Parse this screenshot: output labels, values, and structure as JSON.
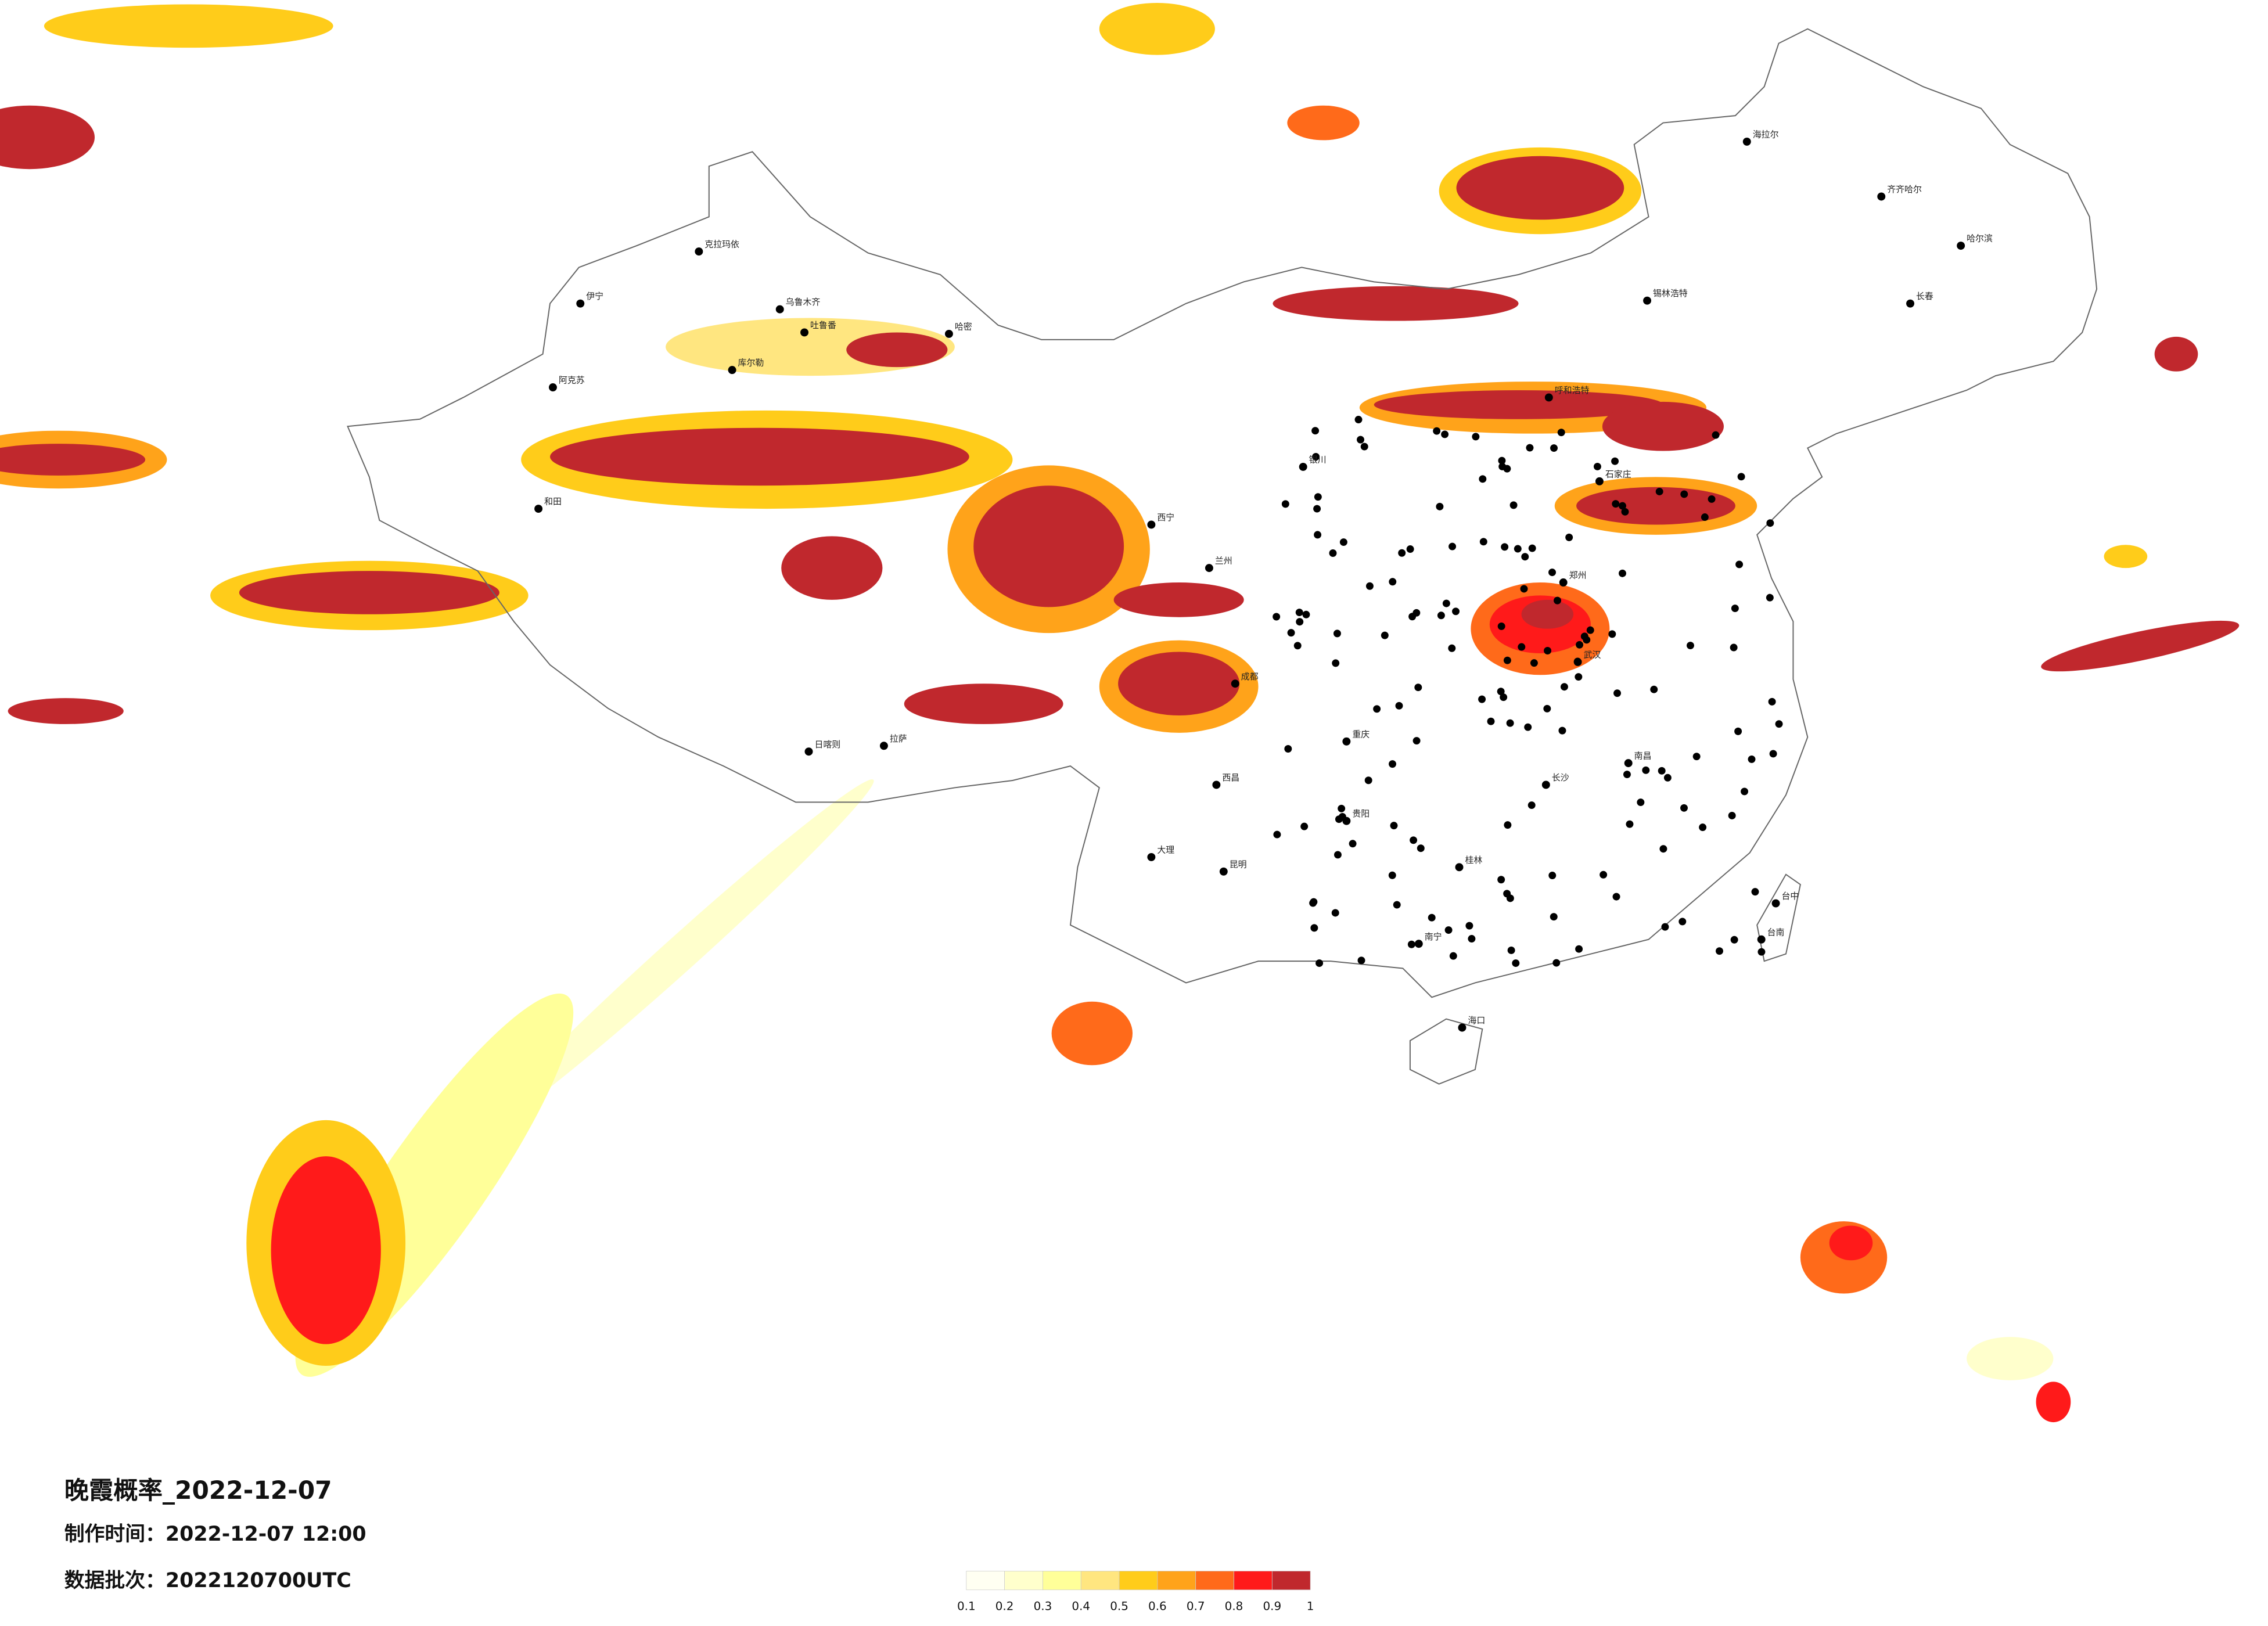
{
  "map": {
    "title": "晚霞概率_2022-12-07",
    "produced": "制作时间：2022-12-07 12:00",
    "batch": "数据批次：2022120700UTC",
    "legend": {
      "colors": [
        "#fffff2",
        "#ffffcc",
        "#ffff99",
        "#ffe680",
        "#ffcc1a",
        "#ffa31a",
        "#ff6a1a",
        "#ff1a1a",
        "#c0282d"
      ],
      "ticks": [
        0.1,
        0.2,
        0.3,
        0.4,
        0.5,
        0.6,
        0.7,
        0.8,
        0.9,
        1
      ]
    },
    "cities": [
      "克拉玛依",
      "伊宁",
      "乌鲁木齐",
      "吐鲁番",
      "哈密",
      "库尔勒",
      "阿克苏",
      "和田",
      "日喀则",
      "拉萨",
      "西宁",
      "兰州",
      "银川",
      "呼和浩特",
      "锡林浩特",
      "海拉尔",
      "齐齐哈尔",
      "哈尔滨",
      "长春",
      "石家庄",
      "郑州",
      "武汉",
      "长沙",
      "南昌",
      "成都",
      "重庆",
      "贵阳",
      "昆明",
      "大理",
      "西昌",
      "桂林",
      "南宁",
      "海口",
      "台中",
      "台南"
    ]
  }
}
